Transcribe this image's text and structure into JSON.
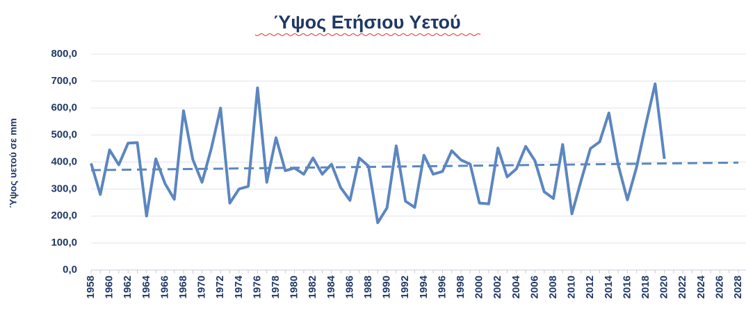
{
  "chart_data": {
    "type": "line",
    "title": "Ύψος Ετήσιου Υετού",
    "y_label": "Ύψος υετού σε mm",
    "categories": [
      "1958",
      null,
      "1960",
      null,
      "1962",
      null,
      "1964",
      null,
      "1966",
      null,
      "1968",
      null,
      "1970",
      null,
      "1972",
      null,
      "1974",
      null,
      "1976",
      null,
      "1978",
      null,
      "1980",
      null,
      "1982",
      null,
      "1984",
      null,
      "1986",
      null,
      "1988",
      null,
      "1990",
      null,
      "1992",
      null,
      "1994",
      null,
      "1996",
      null,
      "1998",
      null,
      "2000",
      null,
      "2002",
      null,
      "2004",
      null,
      "2006",
      null,
      "2008",
      null,
      "2010",
      null,
      "2012",
      null,
      "2014",
      null,
      "2016",
      null,
      "2018",
      null,
      "2020",
      null,
      "2022",
      null,
      "2024",
      null,
      "2026",
      null,
      "2028"
    ],
    "series": [
      {
        "color": "#5b86c0",
        "values": [
          395,
          280,
          445,
          390,
          470,
          472,
          200,
          412,
          320,
          262,
          590,
          410,
          325,
          450,
          600,
          248,
          300,
          310,
          675,
          325,
          490,
          368,
          378,
          355,
          415,
          355,
          392,
          305,
          258,
          415,
          385,
          175,
          230,
          460,
          255,
          232,
          425,
          355,
          365,
          442,
          408,
          392,
          248,
          245,
          452,
          345,
          375,
          458,
          405,
          290,
          265,
          465,
          208,
          332,
          450,
          475,
          582,
          390,
          260,
          382,
          540,
          690,
          412,
          null,
          null,
          null,
          null,
          null,
          null,
          null,
          null
        ]
      }
    ],
    "trend": {
      "color": "#5b86c0",
      "values": [
        370,
        398
      ]
    },
    "ylim": [
      0,
      800
    ],
    "yticks": [
      {
        "value": 0,
        "label": "0,0"
      },
      {
        "value": 100,
        "label": "100,0"
      },
      {
        "value": 200,
        "label": "200,0"
      },
      {
        "value": 300,
        "label": "300,0"
      },
      {
        "value": 400,
        "label": "400,0"
      },
      {
        "value": 500,
        "label": "500,0"
      },
      {
        "value": 600,
        "label": "600,0"
      },
      {
        "value": 700,
        "label": "700,0"
      },
      {
        "value": 800,
        "label": "800,0"
      }
    ],
    "grid": true
  }
}
